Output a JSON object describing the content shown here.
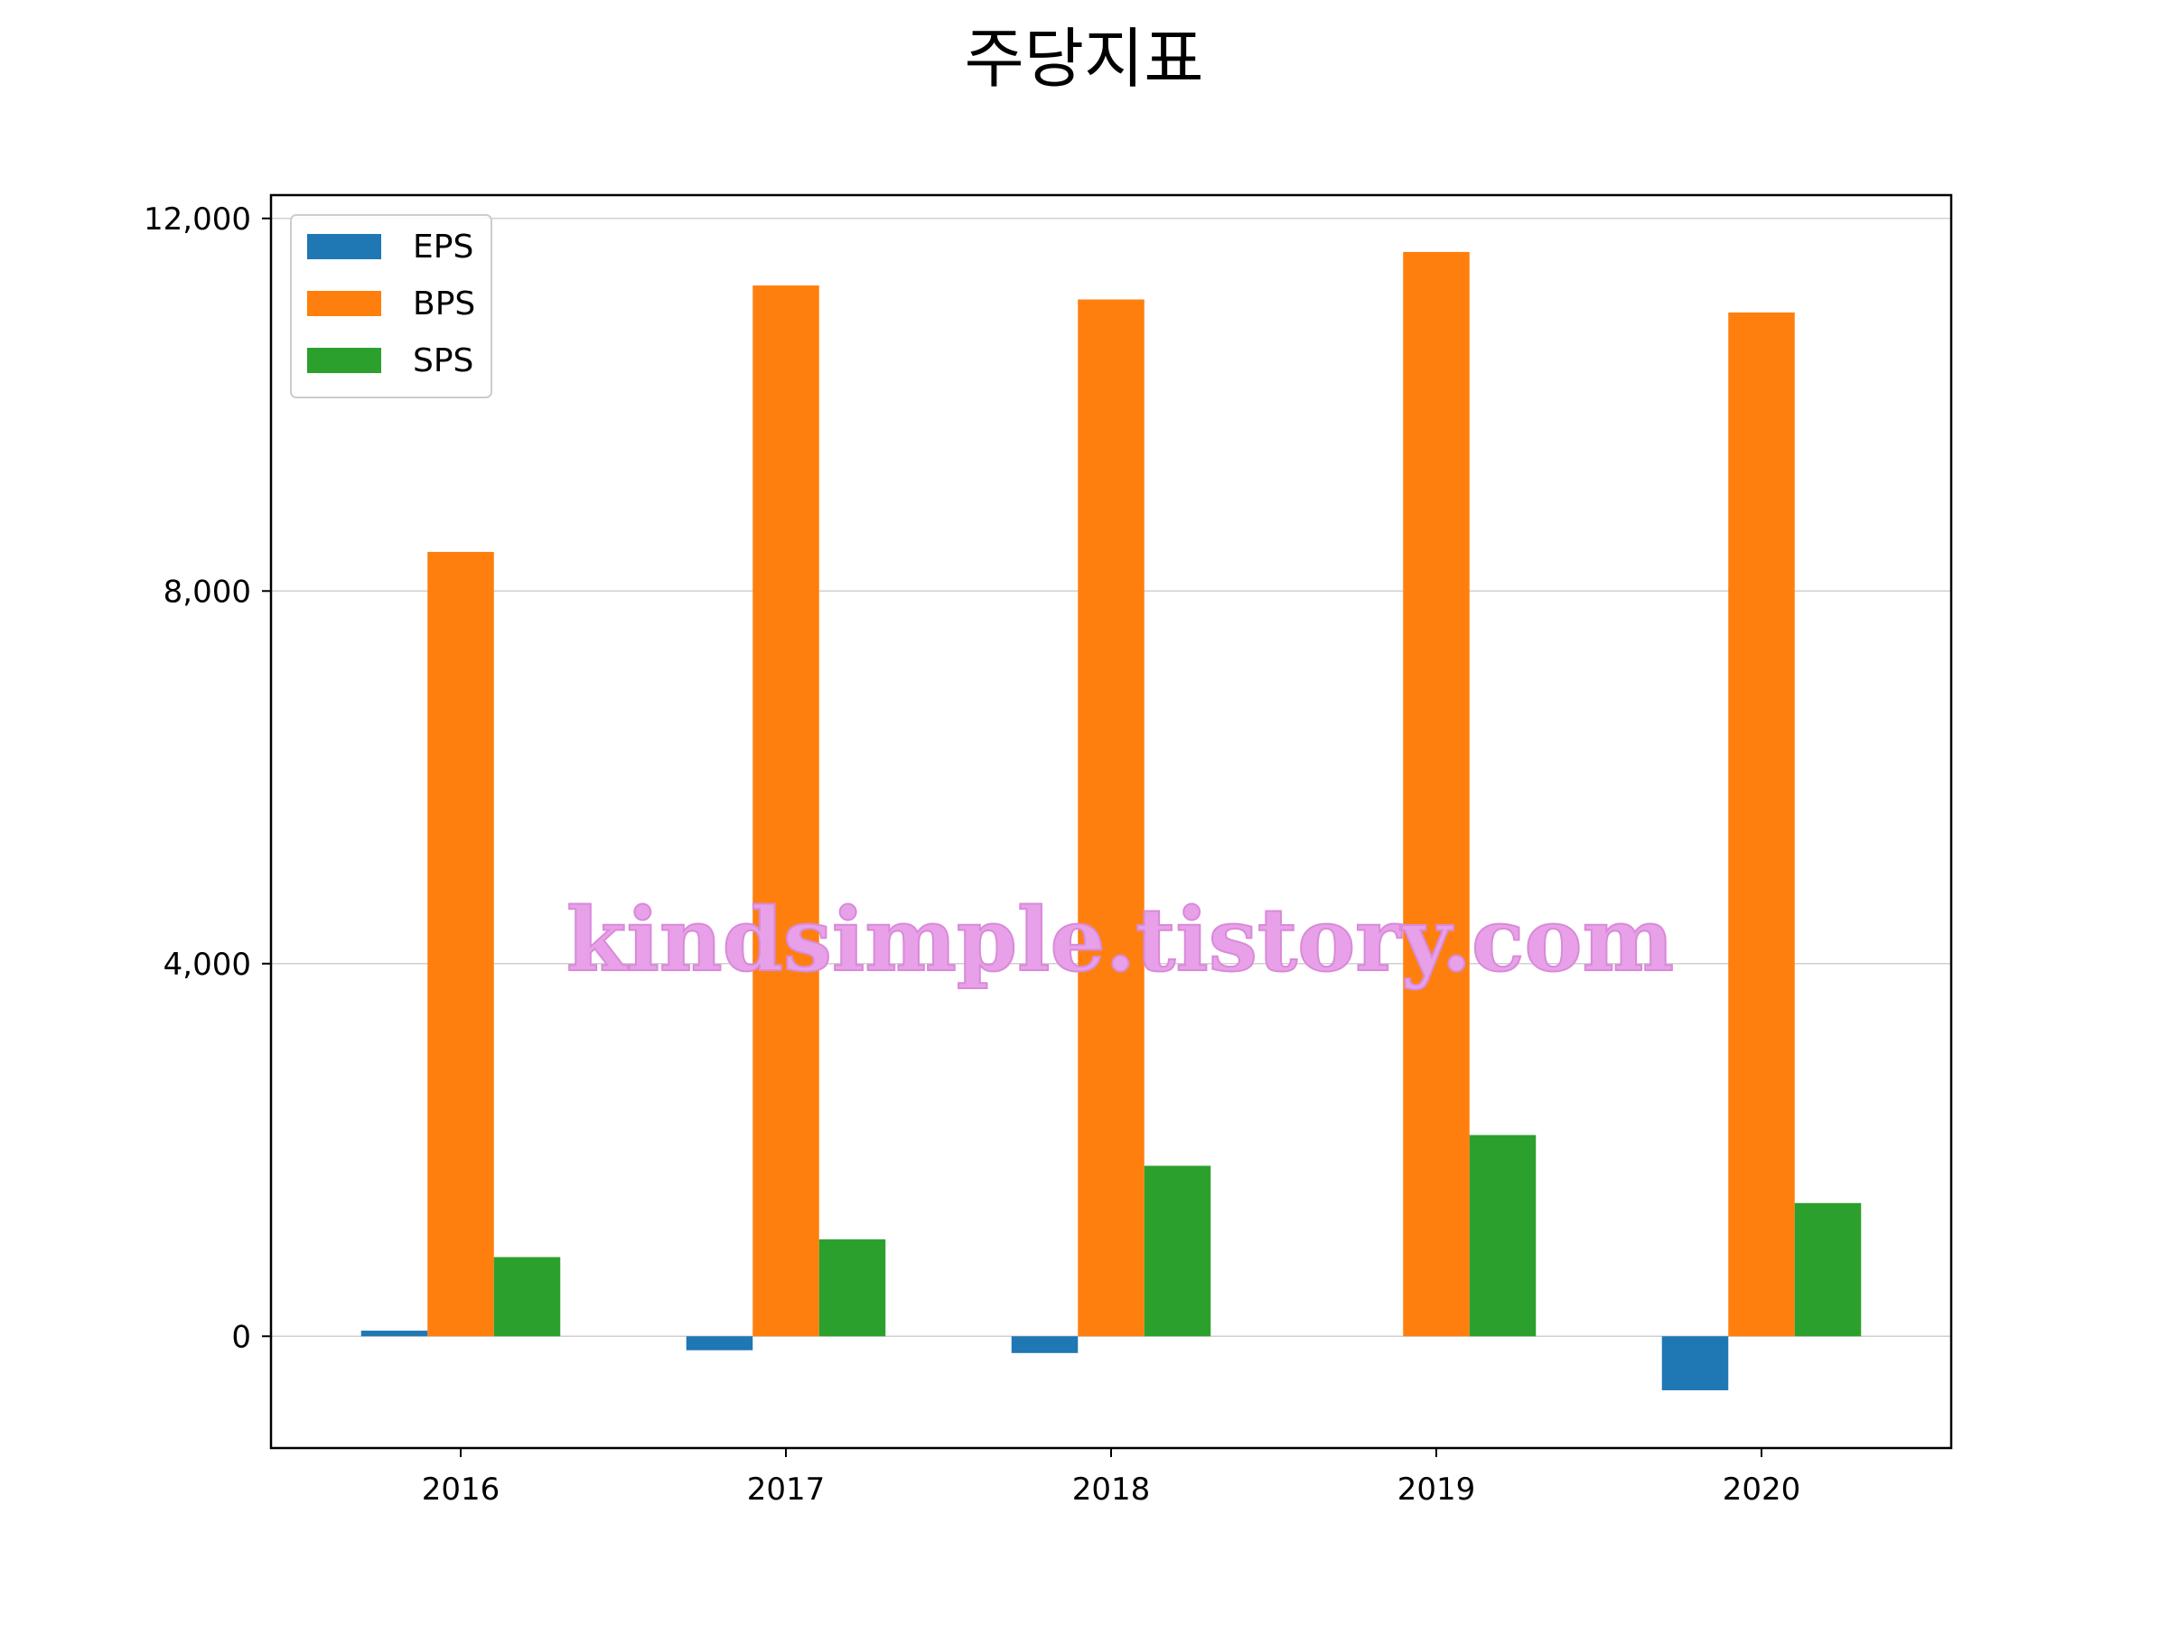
{
  "chart_data": {
    "type": "bar",
    "title": "주당지표",
    "xlabel": "",
    "ylabel": "",
    "categories": [
      "2016",
      "2017",
      "2018",
      "2019",
      "2020"
    ],
    "series": [
      {
        "name": "EPS",
        "color": "#1f77b4",
        "values": [
          60,
          -150,
          -180,
          0,
          -580
        ]
      },
      {
        "name": "BPS",
        "color": "#ff7f0e",
        "values": [
          8420,
          11280,
          11130,
          11640,
          10990
        ]
      },
      {
        "name": "SPS",
        "color": "#2ca02c",
        "values": [
          850,
          1040,
          1830,
          2160,
          1430
        ]
      }
    ],
    "ylim": [
      -1200,
      12250
    ],
    "yticks": [
      0,
      4000,
      8000,
      12000
    ],
    "ytick_labels": [
      "0",
      "4,000",
      "8,000",
      "12,000"
    ],
    "grid": "y",
    "legend_position": "top-left"
  },
  "watermark": "kindsimple.tistory.com"
}
